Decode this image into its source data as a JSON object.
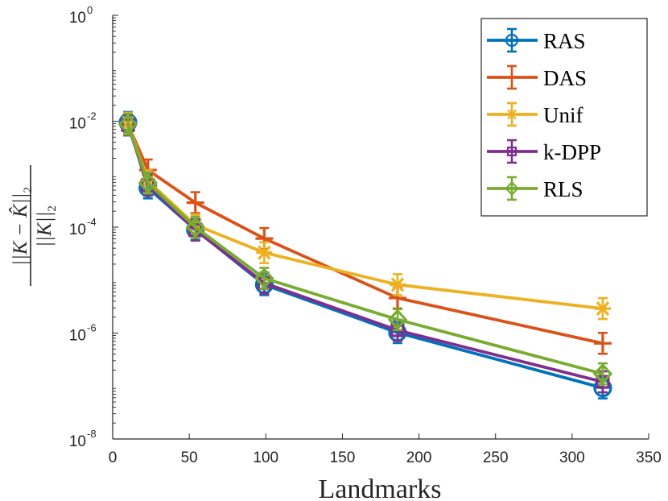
{
  "chart_data": {
    "type": "line",
    "y_scale": "log",
    "xlabel": "Landmarks",
    "ylabel": {
      "numerator": "||K − K̂||",
      "denominator": "||K||",
      "subscript": "2"
    },
    "xlim": [
      0,
      350
    ],
    "ylim_exponents": [
      -8,
      0
    ],
    "x_ticks": [
      "0",
      "50",
      "100",
      "150",
      "200",
      "250",
      "300",
      "350"
    ],
    "y_tick_base": "10",
    "y_tick_exponents": [
      "0",
      "-2",
      "-4",
      "-6",
      "-8"
    ],
    "x": [
      10,
      23,
      54,
      99,
      186,
      320
    ],
    "series": [
      {
        "name": "RAS",
        "color": "#0072BD",
        "marker": "circle",
        "values": [
          0.0095,
          0.00055,
          9e-05,
          8.2e-06,
          1.02e-06,
          9.2e-08
        ]
      },
      {
        "name": "DAS",
        "color": "#D95319",
        "marker": "plus",
        "values": [
          0.0087,
          0.0012,
          0.00029,
          6.1e-05,
          4.6e-06,
          6.4e-07
        ]
      },
      {
        "name": "Unif",
        "color": "#EDB120",
        "marker": "asterisk",
        "values": [
          0.0092,
          0.00075,
          0.00011,
          3.3e-05,
          8.2e-06,
          2.9e-06
        ]
      },
      {
        "name": "k-DPP",
        "color": "#7E2F8E",
        "marker": "square",
        "values": [
          0.0085,
          0.00062,
          8.8e-05,
          8.8e-06,
          1.13e-06,
          1.2e-07
        ]
      },
      {
        "name": "RLS",
        "color": "#77AC30",
        "marker": "diamond",
        "values": [
          0.0088,
          0.00068,
          0.0001,
          1.08e-05,
          1.8e-06,
          1.7e-07
        ]
      }
    ],
    "legend_position": "top-right"
  }
}
